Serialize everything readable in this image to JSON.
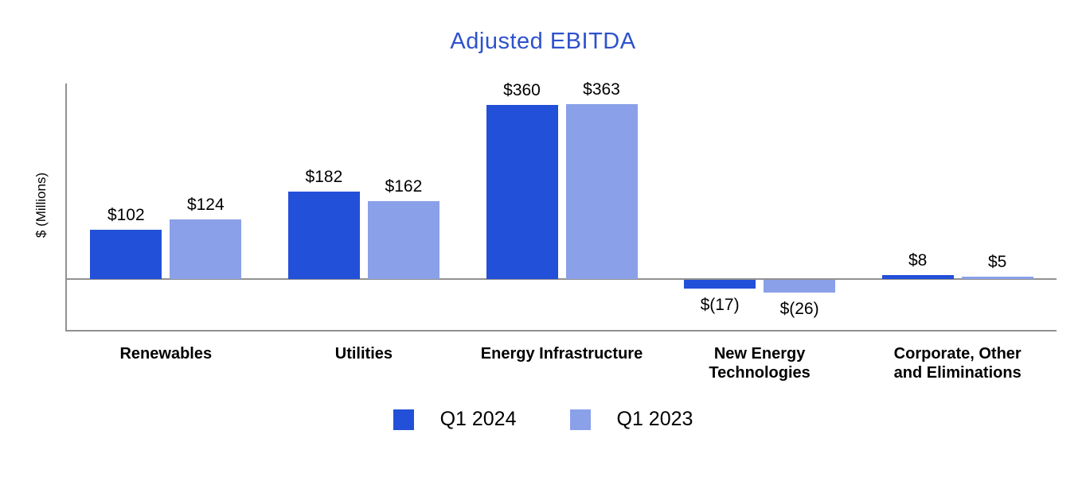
{
  "chart_data": {
    "type": "bar",
    "title": "Adjusted EBITDA",
    "title_color": "#2d52cc",
    "ylabel": "$ (Millions)",
    "ylim": [
      -105,
      405
    ],
    "grid": false,
    "legend_position": "bottom",
    "axis_color": "#919191",
    "categories": [
      "Renewables",
      "Utilities",
      "Energy Infrastructure",
      "New Energy\nTechnologies",
      "Corporate, Other\nand Eliminations"
    ],
    "series": [
      {
        "name": "Q1 2024",
        "color": "#2350d8",
        "values": [
          102,
          182,
          360,
          -17,
          8
        ],
        "value_labels": [
          "$102",
          "$182",
          "$360",
          "$(17)",
          "$8"
        ]
      },
      {
        "name": "Q1 2023",
        "color": "#8aa0e8",
        "values": [
          124,
          162,
          363,
          -26,
          5
        ],
        "value_labels": [
          "$124",
          "$162",
          "$363",
          "$(26)",
          "$5"
        ]
      }
    ]
  }
}
